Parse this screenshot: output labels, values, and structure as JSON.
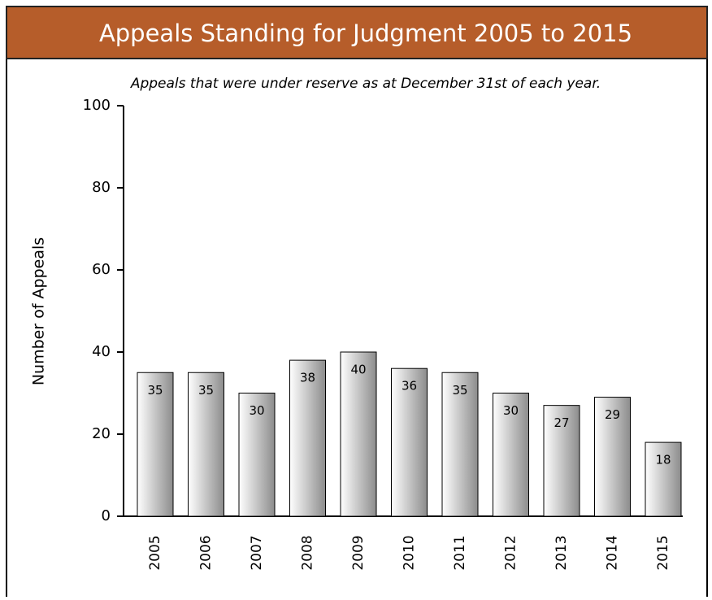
{
  "chart_data": {
    "type": "bar",
    "title": "Appeals Standing for Judgment 2005 to 2015",
    "subtitle": "Appeals that were under reserve as at December 31st of each year.",
    "y_label": "Number of Appeals",
    "categories": [
      "2005",
      "2006",
      "2007",
      "2008",
      "2009",
      "2010",
      "2011",
      "2012",
      "2013",
      "2014",
      "2015"
    ],
    "values": [
      35,
      35,
      30,
      38,
      40,
      36,
      35,
      30,
      27,
      29,
      18
    ],
    "ylim": [
      0,
      100
    ],
    "yticks": [
      0,
      20,
      40,
      60,
      80,
      100
    ]
  }
}
